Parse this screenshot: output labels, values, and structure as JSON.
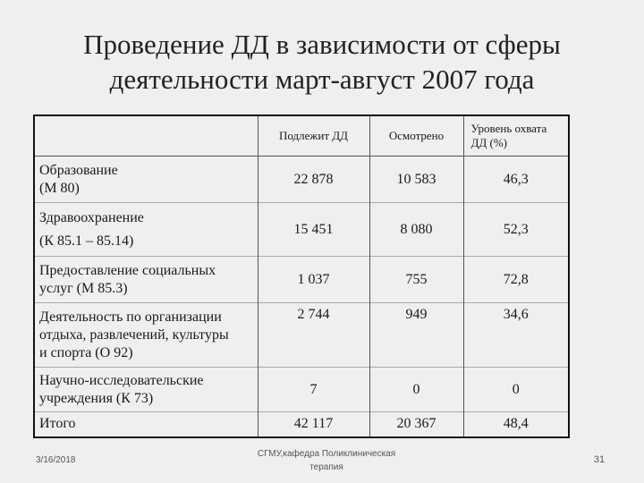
{
  "title": {
    "line1": "Проведение ДД в зависимости от сферы",
    "line2": "деятельности март-август 2007 года"
  },
  "table": {
    "headers": {
      "subject": "Подлежит ДД",
      "examined": "Осмотрено",
      "coverage": "Уровень охвата ДД (%)"
    },
    "rows": [
      {
        "name_line1": "Образование",
        "name_line2": "(М 80)",
        "subject": "22 878",
        "examined": "10 583",
        "coverage": "46,3"
      },
      {
        "name_line1": "Здравоохранение",
        "name_line2": "(К 85.1 – 85.14)",
        "subject": "15 451",
        "examined": "8 080",
        "coverage": "52,3"
      },
      {
        "name_line1": "Предоставление социальных",
        "name_line2": "услуг (М 85.3)",
        "subject": "1 037",
        "examined": "755",
        "coverage": "72,8"
      },
      {
        "name_line1": "Деятельность по организации",
        "name_line2": "отдыха, развлечений, культуры",
        "name_line3": "и спорта (О 92)",
        "subject": "2 744",
        "examined": "949",
        "coverage": "34,6"
      },
      {
        "name_line1": "Научно-исследовательские",
        "name_line2": "учреждения  (К 73)",
        "subject": "7",
        "examined": "0",
        "coverage": "0"
      },
      {
        "name_line1": "Итого",
        "subject": "42 117",
        "examined": "20 367",
        "coverage": "48,4"
      }
    ]
  },
  "footer": {
    "date": "3/16/2018",
    "org_line1": "СГМУ,кафедра Поликлиническая",
    "org_line2": "терапия",
    "page": "31"
  }
}
